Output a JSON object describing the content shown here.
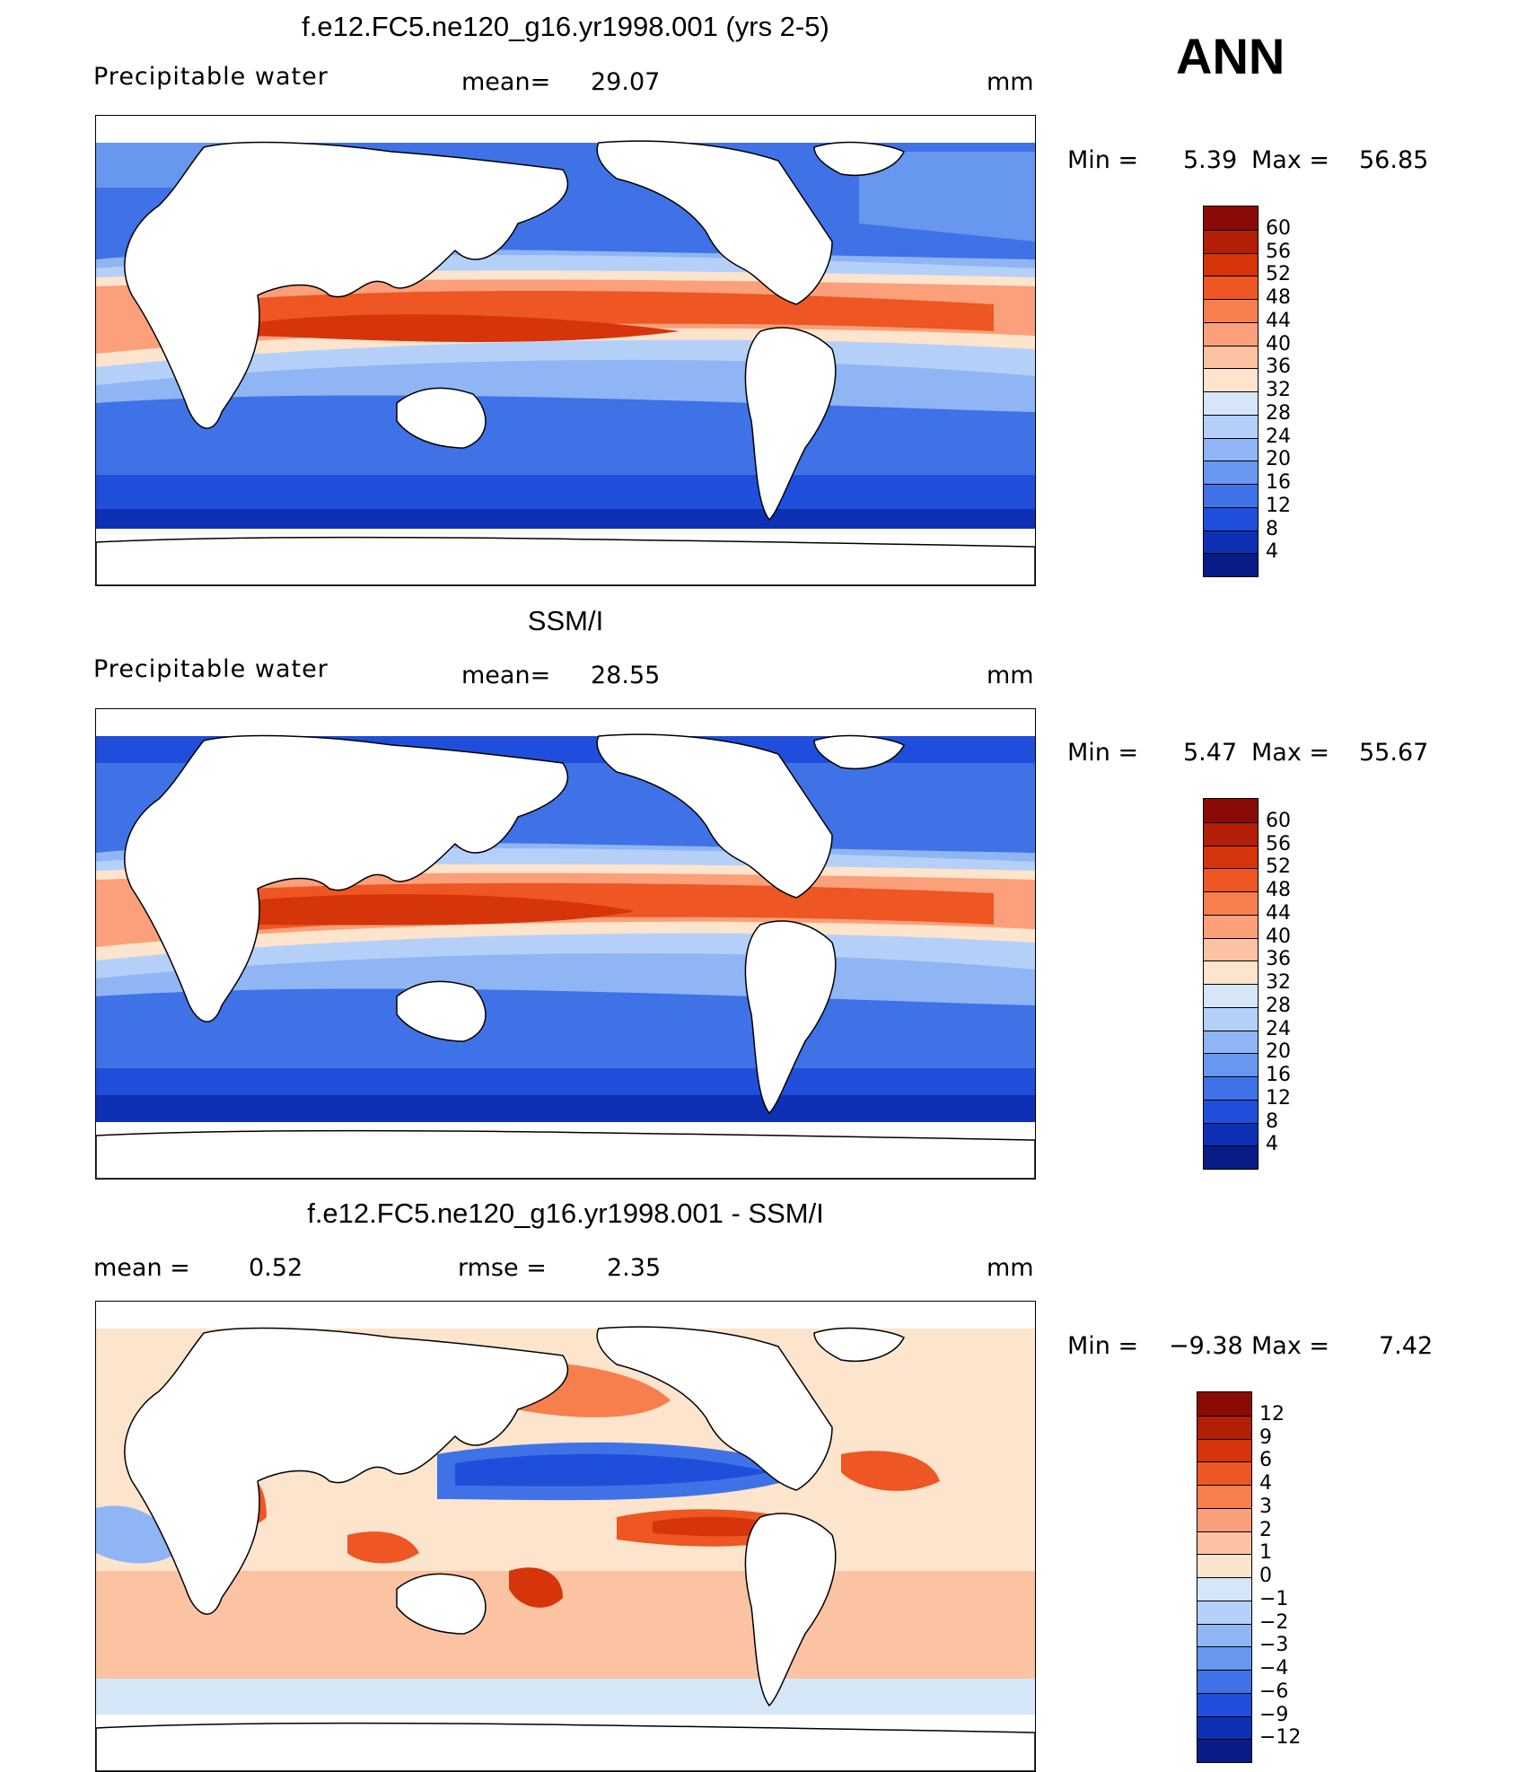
{
  "season": "ANN",
  "units_label": "mm",
  "panels": [
    {
      "title": "f.e12.FC5.ne120_g16.yr1998.001 (yrs 2-5)",
      "variable": "Precipitable water",
      "stat1_label": "mean=",
      "stat1_value": "29.07",
      "units": "mm",
      "min_label": "Min =",
      "min_value": "5.39",
      "max_label": "Max =",
      "max_value": "56.85",
      "colorbar_ticks": [
        "60",
        "56",
        "52",
        "48",
        "44",
        "40",
        "36",
        "32",
        "28",
        "24",
        "20",
        "16",
        "12",
        "8",
        "4"
      ]
    },
    {
      "title": "SSM/I",
      "variable": "Precipitable water",
      "stat1_label": "mean=",
      "stat1_value": "28.55",
      "units": "mm",
      "min_label": "Min =",
      "min_value": "5.47",
      "max_label": "Max =",
      "max_value": "55.67",
      "colorbar_ticks": [
        "60",
        "56",
        "52",
        "48",
        "44",
        "40",
        "36",
        "32",
        "28",
        "24",
        "20",
        "16",
        "12",
        "8",
        "4"
      ]
    },
    {
      "title": "f.e12.FC5.ne120_g16.yr1998.001 - SSM/I",
      "stat1_label": "mean =",
      "stat1_value": "0.52",
      "stat2_label": "rmse =",
      "stat2_value": "2.35",
      "units": "mm",
      "min_label": "Min =",
      "min_value": "−9.38",
      "max_label": "Max =",
      "max_value": "7.42",
      "colorbar_ticks": [
        "12",
        "9",
        "6",
        "4",
        "3",
        "2",
        "1",
        "0",
        "−1",
        "−2",
        "−3",
        "−4",
        "−6",
        "−9",
        "−12"
      ]
    }
  ],
  "colors": {
    "field_palette": [
      "#8a0b06",
      "#b21e06",
      "#d6340a",
      "#ee5623",
      "#f77f4d",
      "#fba07a",
      "#fcc3a3",
      "#fde4cd",
      "#d6e6f9",
      "#b5d0f8",
      "#8fb5f4",
      "#6797ee",
      "#3f72e6",
      "#1f4fda",
      "#0e30b5",
      "#071c86"
    ],
    "diff_palette": [
      "#8a0b06",
      "#b21e06",
      "#d6340a",
      "#ee5623",
      "#f77f4d",
      "#fba07a",
      "#fcc3a3",
      "#fde4cd",
      "#d6e6f9",
      "#b5d0f8",
      "#8fb5f4",
      "#6797ee",
      "#3f72e6",
      "#1f4fda",
      "#0e30b5",
      "#071c86"
    ]
  }
}
